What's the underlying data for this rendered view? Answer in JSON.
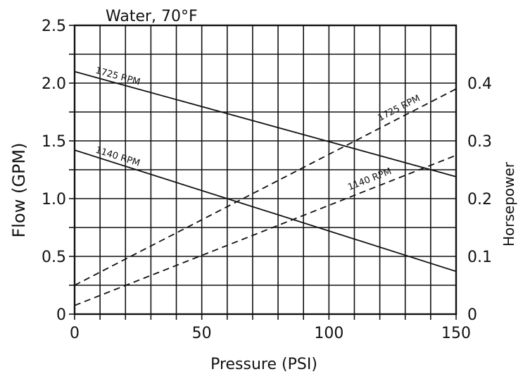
{
  "chart_data": {
    "type": "line",
    "title": "Water, 70°F",
    "xlabel": "Pressure (PSI)",
    "ylabel_left": "Flow (GPM)",
    "ylabel_right": "Horsepower",
    "xlim": [
      0,
      150
    ],
    "ylim_left": [
      0,
      2.5
    ],
    "ylim_right": [
      0,
      0.5
    ],
    "grid": true,
    "x_ticks": [
      "0",
      "50",
      "100",
      "150"
    ],
    "y_left_ticks": [
      "0",
      "0.5",
      "1.0",
      "1.5",
      "2.0",
      "2.5"
    ],
    "y_right_ticks": [
      "0",
      "0.1",
      "0.2",
      "0.3",
      "0.4"
    ],
    "series": [
      {
        "name": "1725 RPM",
        "axis": "left",
        "style": "solid",
        "x": [
          0,
          150
        ],
        "y": [
          2.1,
          1.19
        ]
      },
      {
        "name": "1140 RPM",
        "axis": "left",
        "style": "solid",
        "x": [
          0,
          150
        ],
        "y": [
          1.42,
          0.37
        ]
      },
      {
        "name": "1725 RPM",
        "axis": "right",
        "style": "dashed",
        "x": [
          0,
          150
        ],
        "y": [
          0.05,
          0.39
        ]
      },
      {
        "name": "1140 RPM",
        "axis": "right",
        "style": "dashed",
        "x": [
          0,
          150
        ],
        "y": [
          0.015,
          0.275
        ]
      }
    ]
  }
}
